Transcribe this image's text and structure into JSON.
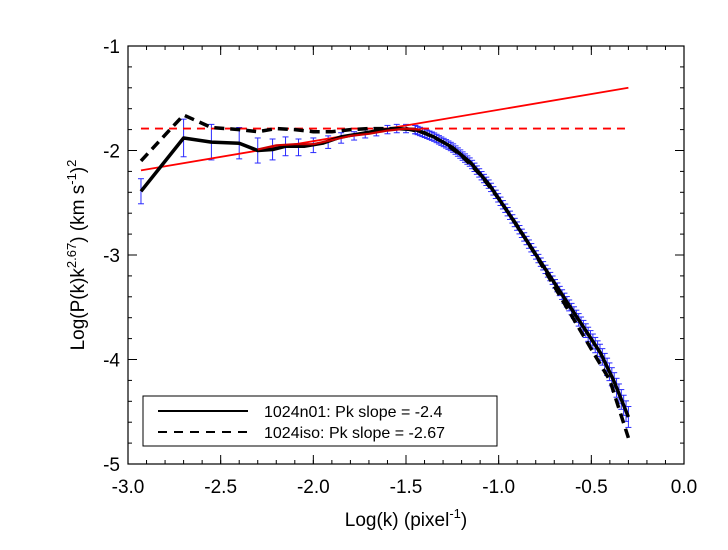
{
  "chart_data": {
    "type": "line",
    "xlabel_main": "Log(k) (pixel",
    "xlabel_sup": "-1",
    "xlabel_end": ")",
    "ylabel_main": "Log(P(k)k",
    "ylabel_sup1": "2.67",
    "ylabel_mid": ") (km s",
    "ylabel_sup2": "-1",
    "ylabel_mid2": ")",
    "ylabel_sup3": "2",
    "xlim": [
      -3.0,
      0.0
    ],
    "ylim": [
      -5.0,
      -1.0
    ],
    "xticks": [
      -3.0,
      -2.5,
      -2.0,
      -1.5,
      -1.0,
      -0.5,
      0.0
    ],
    "xtick_labels": [
      "-3.0",
      "-2.5",
      "-2.0",
      "-1.5",
      "-1.0",
      "-0.5",
      "0.0"
    ],
    "yticks": [
      -5,
      -4,
      -3,
      -2,
      -1
    ],
    "ytick_labels": [
      "-5",
      "-4",
      "-3",
      "-2",
      "-1"
    ],
    "legend": {
      "placement": "bottom-left",
      "entries": [
        {
          "label": "1024n01: Pk slope = -2.4",
          "style": "solid"
        },
        {
          "label": "1024iso: Pk slope = -2.67",
          "style": "dashed"
        }
      ]
    },
    "series": [
      {
        "name": "1024n01: Pk slope = -2.4",
        "color": "#000000",
        "style": "solid",
        "points": [
          [
            -2.93,
            -2.39
          ],
          [
            -2.7,
            -1.88
          ],
          [
            -2.55,
            -1.92
          ],
          [
            -2.4,
            -1.93
          ],
          [
            -2.3,
            -2.0
          ],
          [
            -2.22,
            -1.99
          ],
          [
            -2.15,
            -1.96
          ],
          [
            -2.05,
            -1.96
          ],
          [
            -1.95,
            -1.93
          ],
          [
            -1.85,
            -1.87
          ],
          [
            -1.75,
            -1.84
          ],
          [
            -1.65,
            -1.81
          ],
          [
            -1.55,
            -1.79
          ],
          [
            -1.45,
            -1.8
          ],
          [
            -1.35,
            -1.87
          ],
          [
            -1.25,
            -1.97
          ],
          [
            -1.15,
            -2.12
          ],
          [
            -1.05,
            -2.33
          ],
          [
            -0.95,
            -2.59
          ],
          [
            -0.85,
            -2.86
          ],
          [
            -0.75,
            -3.13
          ],
          [
            -0.65,
            -3.4
          ],
          [
            -0.55,
            -3.67
          ],
          [
            -0.45,
            -3.94
          ],
          [
            -0.38,
            -4.2
          ],
          [
            -0.3,
            -4.55
          ]
        ]
      },
      {
        "name": "1024iso: Pk slope = -2.67",
        "color": "#000000",
        "style": "dashed",
        "points": [
          [
            -2.93,
            -2.1
          ],
          [
            -2.7,
            -1.66
          ],
          [
            -2.55,
            -1.78
          ],
          [
            -2.4,
            -1.8
          ],
          [
            -2.3,
            -1.82
          ],
          [
            -2.2,
            -1.79
          ],
          [
            -2.1,
            -1.8
          ],
          [
            -2.0,
            -1.82
          ],
          [
            -1.9,
            -1.82
          ],
          [
            -1.8,
            -1.8
          ],
          [
            -1.7,
            -1.79
          ],
          [
            -1.6,
            -1.79
          ],
          [
            -1.5,
            -1.79
          ],
          [
            -1.4,
            -1.83
          ],
          [
            -1.3,
            -1.92
          ],
          [
            -1.2,
            -2.05
          ],
          [
            -1.1,
            -2.23
          ],
          [
            -1.0,
            -2.46
          ],
          [
            -0.9,
            -2.72
          ],
          [
            -0.8,
            -3.0
          ],
          [
            -0.7,
            -3.3
          ],
          [
            -0.6,
            -3.6
          ],
          [
            -0.5,
            -3.9
          ],
          [
            -0.4,
            -4.2
          ],
          [
            -0.3,
            -4.75
          ]
        ]
      },
      {
        "name": "",
        "color": "#cc0000",
        "style": "solid",
        "points": [
          [
            -2.3,
            -1.99
          ],
          [
            -2.2,
            -1.95
          ],
          [
            -2.1,
            -1.94
          ],
          [
            -2.0,
            -1.94
          ],
          [
            -1.9,
            -1.9
          ],
          [
            -1.8,
            -1.86
          ],
          [
            -1.7,
            -1.84
          ],
          [
            -1.6,
            -1.81
          ],
          [
            -1.5,
            -1.79
          ],
          [
            -1.42,
            -1.8
          ]
        ]
      }
    ],
    "fit_lines": [
      {
        "color": "#ff0000",
        "style": "solid",
        "points": [
          [
            -2.93,
            -2.19
          ],
          [
            -0.3,
            -1.4
          ]
        ]
      },
      {
        "color": "#ff0000",
        "style": "dashed",
        "points": [
          [
            -2.93,
            -1.79
          ],
          [
            -0.3,
            -1.79
          ]
        ]
      }
    ],
    "error_bars": {
      "color": "#2a2aff",
      "points": [
        {
          "x": -2.93,
          "y": -2.39,
          "err": 0.12
        },
        {
          "x": -2.7,
          "y": -1.88,
          "err": 0.18
        },
        {
          "x": -2.55,
          "y": -1.92,
          "err": 0.17
        },
        {
          "x": -2.4,
          "y": -1.93,
          "err": 0.15
        },
        {
          "x": -2.3,
          "y": -2.0,
          "err": 0.12
        },
        {
          "x": -2.22,
          "y": -1.99,
          "err": 0.1
        },
        {
          "x": -2.15,
          "y": -1.96,
          "err": 0.09
        },
        {
          "x": -2.08,
          "y": -1.97,
          "err": 0.08
        },
        {
          "x": -2.0,
          "y": -1.95,
          "err": 0.07
        },
        {
          "x": -1.92,
          "y": -1.92,
          "err": 0.06
        },
        {
          "x": -1.85,
          "y": -1.88,
          "err": 0.05
        },
        {
          "x": -1.78,
          "y": -1.86,
          "err": 0.04
        },
        {
          "x": -1.72,
          "y": -1.84,
          "err": 0.04
        },
        {
          "x": -1.66,
          "y": -1.82,
          "err": 0.04
        },
        {
          "x": -1.6,
          "y": -1.8,
          "err": 0.04
        },
        {
          "x": -1.55,
          "y": -1.79,
          "err": 0.04
        },
        {
          "x": -1.5,
          "y": -1.79,
          "err": 0.04
        },
        {
          "x": -1.45,
          "y": -1.8,
          "err": 0.04
        }
      ],
      "dense_range": [
        -1.45,
        -0.3
      ],
      "dense_err": 0.04
    }
  }
}
